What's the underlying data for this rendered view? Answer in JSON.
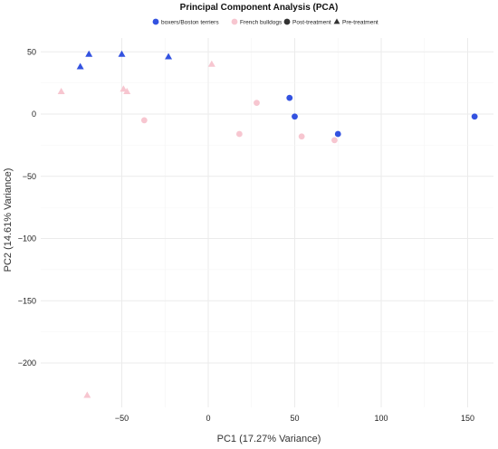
{
  "chart_data": {
    "type": "scatter",
    "title": "Principal Component Analysis (PCA)",
    "xlabel": "PC1 (17.27% Variance)",
    "ylabel": "PC2 (14.61% Variance)",
    "xlim": [
      -90,
      160
    ],
    "ylim": [
      -230,
      58
    ],
    "x_ticks": [
      -50,
      0,
      50,
      100,
      150
    ],
    "y_ticks": [
      50,
      0,
      -50,
      -100,
      -150,
      -200
    ],
    "grid": true,
    "legend_position": "top",
    "legend": [
      {
        "label": "boxers/Boston terriers",
        "shape": "circle",
        "color": "#3352e0"
      },
      {
        "label": "French bulldogs",
        "shape": "circle",
        "color": "#f7c6d0"
      },
      {
        "label": "Post-treatment",
        "shape": "circle",
        "color": "#333333"
      },
      {
        "label": "Pre-treatment",
        "shape": "triangle",
        "color": "#333333"
      }
    ],
    "series": [
      {
        "group": "boxers/Boston terriers",
        "shape": "circle",
        "color": "#3352e0",
        "points": [
          [
            47,
            13
          ],
          [
            50,
            -2
          ],
          [
            75,
            -16
          ],
          [
            154,
            -2
          ]
        ]
      },
      {
        "group": "boxers/Boston terriers",
        "shape": "triangle",
        "color": "#3352e0",
        "points": [
          [
            -69,
            48
          ],
          [
            -74,
            38
          ],
          [
            -50,
            48
          ],
          [
            -23,
            46
          ]
        ]
      },
      {
        "group": "French bulldogs",
        "shape": "circle",
        "color": "#f7c6d0",
        "points": [
          [
            -37,
            -5
          ],
          [
            18,
            -16
          ],
          [
            28,
            9
          ],
          [
            54,
            -18
          ],
          [
            73,
            -21
          ]
        ]
      },
      {
        "group": "French bulldogs",
        "shape": "triangle",
        "color": "#f7c6d0",
        "points": [
          [
            -85,
            18
          ],
          [
            -49,
            20
          ],
          [
            -47,
            18
          ],
          [
            2,
            40
          ],
          [
            -70,
            -226
          ]
        ]
      }
    ]
  }
}
